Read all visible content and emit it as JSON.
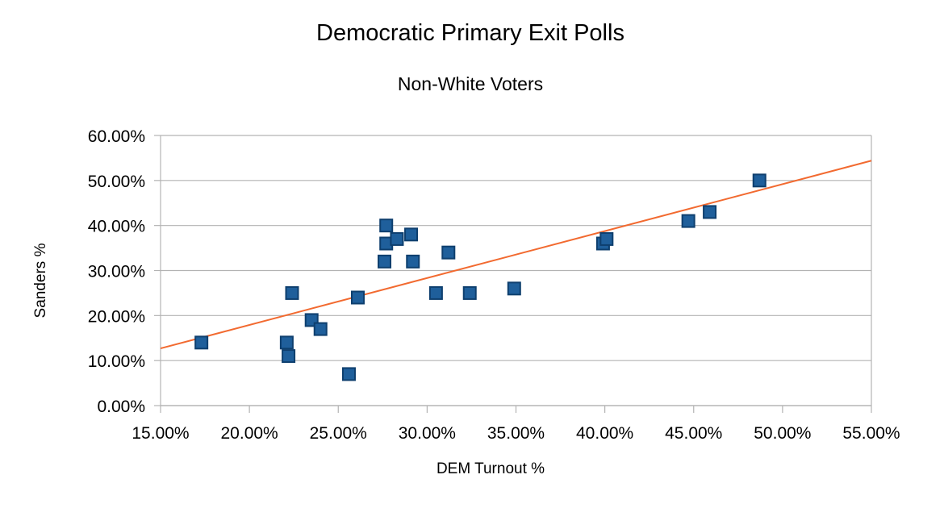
{
  "chart_data": {
    "type": "scatter",
    "title": "Democratic Primary Exit Polls",
    "subtitle": "Non-White  Voters",
    "xlabel": "DEM Turnout %",
    "ylabel": "Sanders  %",
    "xlim": [
      0.15,
      0.55
    ],
    "ylim": [
      0.0,
      0.6
    ],
    "xticks": [
      "15.00%",
      "20.00%",
      "25.00%",
      "30.00%",
      "35.00%",
      "40.00%",
      "45.00%",
      "50.00%",
      "55.00%"
    ],
    "yticks": [
      "0.00%",
      "10.00%",
      "20.00%",
      "30.00%",
      "40.00%",
      "50.00%",
      "60.00%"
    ],
    "grid": "horizontal",
    "legend": "none",
    "series": [
      {
        "color": "#1f5f9b",
        "marker": "square",
        "points": [
          [
            0.173,
            0.14
          ],
          [
            0.221,
            0.14
          ],
          [
            0.222,
            0.11
          ],
          [
            0.224,
            0.25
          ],
          [
            0.235,
            0.19
          ],
          [
            0.24,
            0.17
          ],
          [
            0.256,
            0.07
          ],
          [
            0.261,
            0.24
          ],
          [
            0.276,
            0.32
          ],
          [
            0.277,
            0.36
          ],
          [
            0.277,
            0.4
          ],
          [
            0.283,
            0.37
          ],
          [
            0.291,
            0.38
          ],
          [
            0.292,
            0.32
          ],
          [
            0.305,
            0.25
          ],
          [
            0.312,
            0.34
          ],
          [
            0.324,
            0.25
          ],
          [
            0.349,
            0.26
          ],
          [
            0.399,
            0.36
          ],
          [
            0.401,
            0.37
          ],
          [
            0.447,
            0.41
          ],
          [
            0.459,
            0.43
          ],
          [
            0.487,
            0.5
          ]
        ]
      }
    ],
    "trendline": {
      "type": "linear",
      "color": "#f26a30",
      "from": [
        0.15,
        0.127
      ],
      "to": [
        0.55,
        0.544
      ]
    }
  }
}
